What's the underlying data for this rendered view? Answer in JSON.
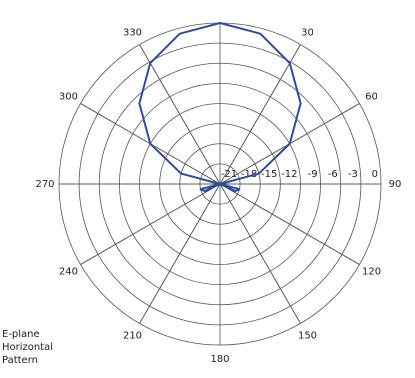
{
  "chart_data": {
    "type": "polar",
    "annotation": [
      "E-plane",
      "Horizontal",
      "Pattern"
    ],
    "theta": [
      0,
      15,
      30,
      45,
      60,
      75,
      90,
      105,
      115,
      130,
      180,
      230,
      245,
      255,
      270,
      285,
      300,
      315,
      330,
      345
    ],
    "series": [
      {
        "color": "#2f4d9c",
        "values": [
          0,
          -0.8,
          -3.2,
          -7,
          -12,
          -18,
          -24,
          -21,
          -21.5,
          -24,
          -24,
          -24,
          -21.5,
          -21,
          -24,
          -18,
          -12,
          -7,
          -3.2,
          -0.8
        ]
      }
    ],
    "rlim": [
      -24,
      0
    ],
    "rticks": [
      -21,
      -18,
      -15,
      -12,
      -9,
      -6,
      -3,
      0
    ],
    "thetaticks": [
      30,
      60,
      90,
      120,
      150,
      180,
      210,
      240,
      270,
      300,
      330
    ],
    "direction": "clockwise",
    "zero_location": "top"
  }
}
